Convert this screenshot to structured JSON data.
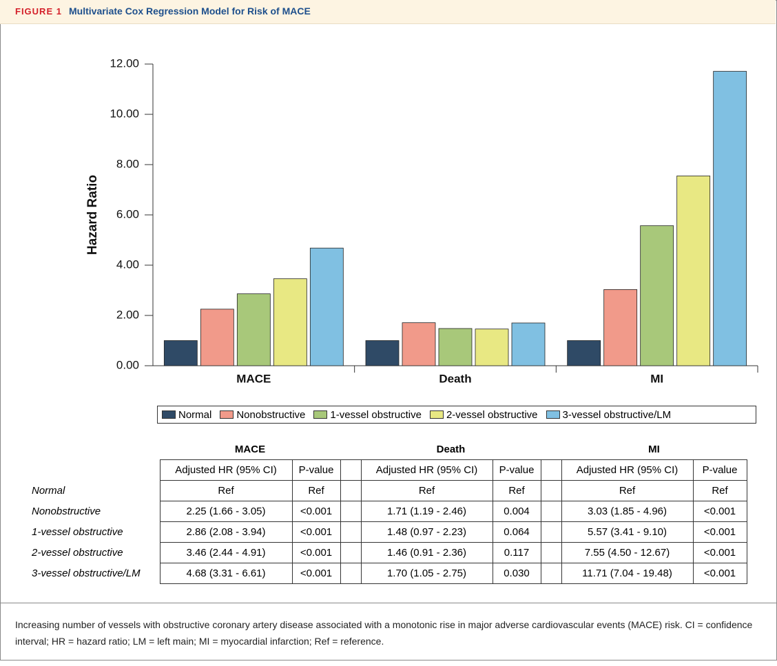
{
  "header": {
    "label": "FIGURE 1",
    "title": "Multivariate Cox Regression Model for Risk of MACE"
  },
  "chart_data": {
    "type": "bar",
    "y_label": "Hazard Ratio",
    "categories": [
      "MACE",
      "Death",
      "MI"
    ],
    "series": [
      {
        "name": "Normal",
        "color": "#2f4a66",
        "values": [
          1.0,
          1.0,
          1.0
        ]
      },
      {
        "name": "Nonobstructive",
        "color": "#f19a8a",
        "values": [
          2.25,
          1.71,
          3.03
        ]
      },
      {
        "name": "1-vessel obstructive",
        "color": "#a8c87a",
        "values": [
          2.86,
          1.48,
          5.57
        ]
      },
      {
        "name": "2-vessel obstructive",
        "color": "#e8e883",
        "values": [
          3.46,
          1.46,
          7.55
        ]
      },
      {
        "name": "3-vessel obstructive/LM",
        "color": "#80c0e2",
        "values": [
          4.68,
          1.7,
          11.71
        ]
      }
    ],
    "ylim": [
      0,
      12
    ],
    "yticks": [
      {
        "value": 0,
        "label": "0.00"
      },
      {
        "value": 2,
        "label": "2.00"
      },
      {
        "value": 4,
        "label": "4.00"
      },
      {
        "value": 6,
        "label": "6.00"
      },
      {
        "value": 8,
        "label": "8.00"
      },
      {
        "value": 10,
        "label": "10.00"
      },
      {
        "value": 12,
        "label": "12.00"
      }
    ],
    "legend": "bottom",
    "grid": false
  },
  "table": {
    "groups": [
      {
        "name": "MACE",
        "columns": [
          "Adjusted HR (95% CI)",
          "P-value"
        ]
      },
      {
        "name": "Death",
        "columns": [
          "Adjusted HR (95% CI)",
          "P-value"
        ]
      },
      {
        "name": "MI",
        "columns": [
          "Adjusted HR (95% CI)",
          "P-value"
        ]
      }
    ],
    "rows": [
      {
        "label": "Normal",
        "cells": [
          "Ref",
          "Ref",
          "Ref",
          "Ref",
          "Ref",
          "Ref"
        ]
      },
      {
        "label": "Nonobstructive",
        "cells": [
          "2.25 (1.66 - 3.05)",
          "<0.001",
          "1.71 (1.19 - 2.46)",
          "0.004",
          "3.03 (1.85 - 4.96)",
          "<0.001"
        ]
      },
      {
        "label": "1-vessel obstructive",
        "cells": [
          "2.86 (2.08 - 3.94)",
          "<0.001",
          "1.48 (0.97 - 2.23)",
          "0.064",
          "5.57 (3.41 - 9.10)",
          "<0.001"
        ]
      },
      {
        "label": "2-vessel obstructive",
        "cells": [
          "3.46 (2.44 - 4.91)",
          "<0.001",
          "1.46 (0.91 - 2.36)",
          "0.117",
          "7.55 (4.50 - 12.67)",
          "<0.001"
        ]
      },
      {
        "label": "3-vessel obstructive/LM",
        "cells": [
          "4.68 (3.31 - 6.61)",
          "<0.001",
          "1.70 (1.05 - 2.75)",
          "0.030",
          "11.71 (7.04 - 19.48)",
          "<0.001"
        ]
      }
    ]
  },
  "caption": "Increasing number of vessels with obstructive coronary artery disease associated with a monotonic rise in major adverse cardiovascular events (MACE) risk. CI = confidence interval; HR = hazard ratio; LM = left main; MI = myocardial infarction; Ref = reference."
}
